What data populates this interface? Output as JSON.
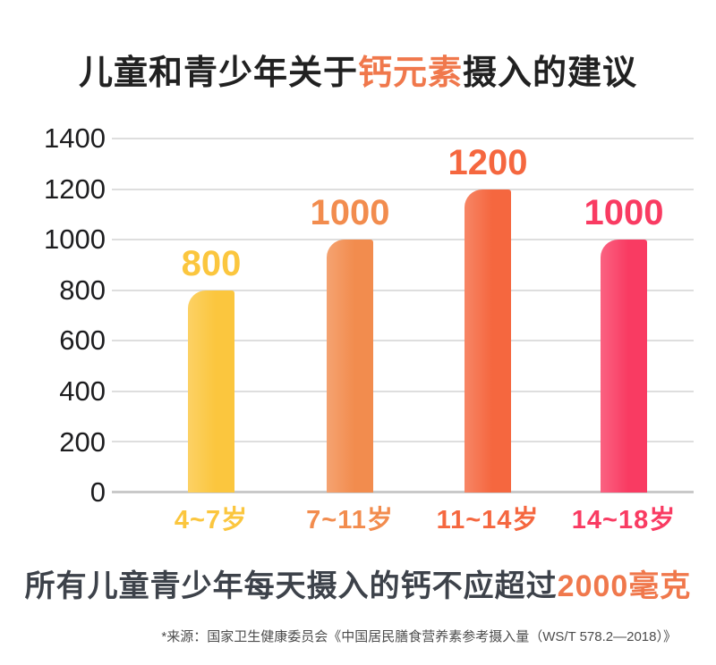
{
  "title": {
    "prefix": "儿童和青少年关于",
    "highlight": "钙元素",
    "suffix": "摄入的建议"
  },
  "chart_data": {
    "type": "bar",
    "title": "儿童和青少年关于钙元素摄入的建议",
    "categories": [
      "4~7岁",
      "7~11岁",
      "11~14岁",
      "14~18岁"
    ],
    "values": [
      800,
      1000,
      1200,
      1000
    ],
    "value_labels": [
      "800",
      "1000",
      "1200",
      "1000"
    ],
    "bar_colors": [
      "#fbc63e",
      "#f28c4e",
      "#f5673f",
      "#f93b62"
    ],
    "y_ticks": [
      "1400",
      "1200",
      "1000",
      "800",
      "600",
      "400",
      "200",
      "0"
    ],
    "ylim": [
      0,
      1400
    ],
    "grid": true,
    "xlabel": "",
    "ylabel": "",
    "legend": "none",
    "annotation": "所有儿童青少年每天摄入的钙不应超过2000毫克"
  },
  "footer": {
    "prefix": "所有儿童青少年每天摄入的钙不应超过",
    "highlight": "2000毫克"
  },
  "source": "*来源：国家卫生健康委员会《中国居民膳食营养素参考摄入量（WS/T 578.2—2018）》",
  "colors": {
    "accent": "#f0784c",
    "title_text": "#212121",
    "footer_text": "#3d424a",
    "axis_text": "#1d1d1f",
    "gridline": "#dedede",
    "baseline": "#c9c9c9",
    "source_text": "#4c4c4c"
  }
}
